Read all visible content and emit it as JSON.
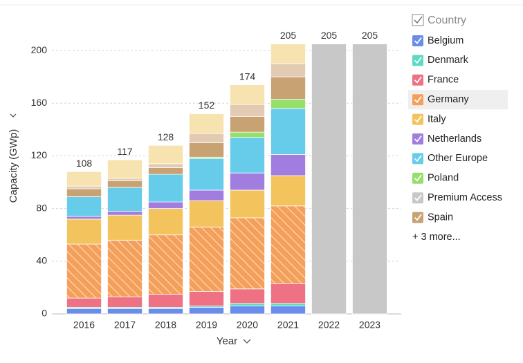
{
  "chart_data": {
    "type": "stacked_bar",
    "x_label": "Year",
    "y_label": "Capacity (GWp)",
    "legend_title": "Country",
    "legend_more": "+ 3 more...",
    "categories": [
      "2016",
      "2017",
      "2018",
      "2019",
      "2020",
      "2021",
      "2022",
      "2023"
    ],
    "totals": [
      108,
      117,
      128,
      152,
      174,
      205,
      205,
      205
    ],
    "ylim": [
      0,
      210
    ],
    "yticks": [
      0,
      40,
      80,
      120,
      160,
      200
    ],
    "grid": true,
    "series": [
      {
        "name": "Belgium",
        "color": "#6b8cea",
        "values": [
          4,
          4,
          4,
          5,
          6,
          6,
          0,
          0
        ]
      },
      {
        "name": "Denmark",
        "color": "#5fd9c4",
        "values": [
          1,
          1,
          1,
          1,
          2,
          2,
          0,
          0
        ]
      },
      {
        "name": "France",
        "color": "#ef7184",
        "values": [
          7,
          8,
          10,
          11,
          11,
          15,
          0,
          0
        ]
      },
      {
        "name": "Germany",
        "color": "#f5a05a",
        "hatch": true,
        "highlight": true,
        "values": [
          41,
          43,
          45,
          49,
          54,
          59,
          0,
          0
        ]
      },
      {
        "name": "Italy",
        "color": "#f3c35e",
        "values": [
          19,
          19,
          20,
          20,
          21,
          23,
          0,
          0
        ]
      },
      {
        "name": "Netherlands",
        "color": "#a07ddf",
        "values": [
          2,
          3,
          5,
          8,
          13,
          16,
          0,
          0
        ]
      },
      {
        "name": "Other Europe",
        "color": "#67cbea",
        "values": [
          15,
          18,
          21,
          24,
          27,
          35,
          0,
          0
        ]
      },
      {
        "name": "Poland",
        "color": "#97df6b",
        "values": [
          0,
          0,
          0,
          1,
          4,
          7,
          0,
          0
        ]
      },
      {
        "name": "Premium Access",
        "color": "#c8c8c8",
        "values": [
          0,
          0,
          0,
          0,
          0,
          0,
          205,
          205
        ]
      },
      {
        "name": "Spain",
        "color": "#c9a273",
        "values": [
          6,
          5,
          5,
          11,
          12,
          17,
          0,
          0
        ]
      },
      {
        "color": "#e3cbb3",
        "values": [
          2,
          2,
          3,
          7,
          9,
          10,
          0,
          0
        ]
      },
      {
        "color": "#f7e3b0",
        "values": [
          11,
          14,
          14,
          15,
          15,
          15,
          0,
          0
        ]
      }
    ]
  }
}
